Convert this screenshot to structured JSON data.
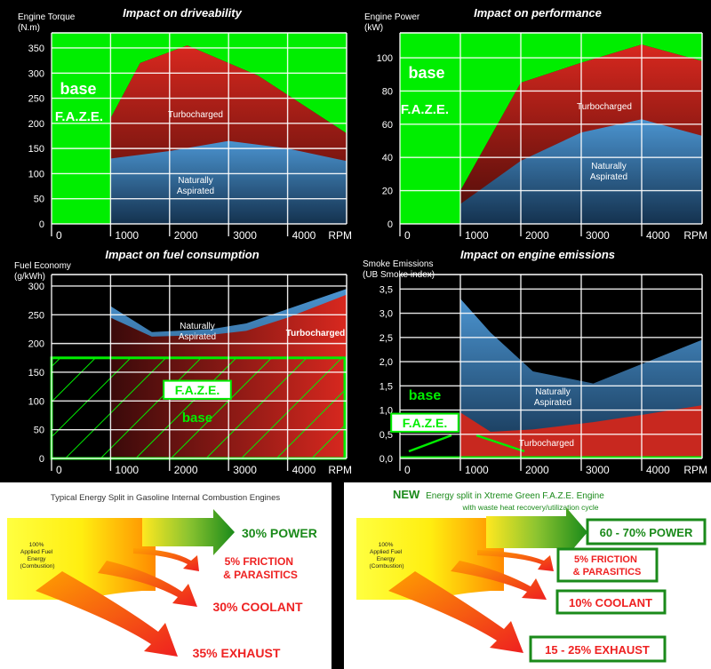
{
  "chart_data": [
    {
      "type": "area",
      "title": "Impact on driveability",
      "ylabel": "Engine Torque (N.m)",
      "xlabel": "RPM",
      "x_ticks": [
        "0",
        "1000",
        "2000",
        "3000",
        "4000"
      ],
      "y_ticks": [
        "0",
        "50",
        "100",
        "150",
        "200",
        "250",
        "300",
        "350"
      ],
      "ylim": [
        0,
        380
      ],
      "xlim": [
        0,
        5000
      ],
      "grid": true,
      "base_label": "base",
      "faze_label": "F.A.Z.E.",
      "series": [
        {
          "name": "Turbocharged",
          "x": [
            1000,
            1500,
            2300,
            3500,
            5000
          ],
          "y": [
            210,
            320,
            355,
            295,
            180
          ]
        },
        {
          "name": "Naturally Aspirated",
          "x": [
            1000,
            2000,
            3000,
            4000,
            5000
          ],
          "y": [
            130,
            145,
            165,
            150,
            125
          ]
        }
      ]
    },
    {
      "type": "area",
      "title": "Impact on performance",
      "ylabel": "Engine Power (kW)",
      "xlabel": "RPM",
      "x_ticks": [
        "0",
        "1000",
        "2000",
        "3000",
        "4000"
      ],
      "y_ticks": [
        "0",
        "20",
        "40",
        "60",
        "80",
        "100"
      ],
      "ylim": [
        0,
        115
      ],
      "xlim": [
        0,
        5000
      ],
      "grid": true,
      "base_label": "base",
      "faze_label": "F.A.Z.E.",
      "series": [
        {
          "name": "Turbocharged",
          "x": [
            1000,
            2000,
            3000,
            4000,
            5000
          ],
          "y": [
            20,
            85,
            97,
            108,
            98
          ]
        },
        {
          "name": "Naturally Aspirated",
          "x": [
            1000,
            2000,
            3000,
            4000,
            5000
          ],
          "y": [
            12,
            38,
            55,
            63,
            53
          ]
        }
      ]
    },
    {
      "type": "area",
      "title": "Impact on fuel consumption",
      "ylabel": "Fuel Economy (g/kWh)",
      "xlabel": "RPM",
      "x_ticks": [
        "0",
        "1000",
        "2000",
        "3000",
        "4000"
      ],
      "y_ticks": [
        "0",
        "50",
        "100",
        "150",
        "200",
        "250",
        "300"
      ],
      "ylim": [
        0,
        320
      ],
      "xlim": [
        0,
        5000
      ],
      "grid": true,
      "base_label": "base",
      "faze_label": "F.A.Z.E.",
      "faze_level": 175,
      "series": [
        {
          "name": "Naturally Aspirated",
          "x": [
            1000,
            1700,
            2700,
            3300,
            4000,
            5000
          ],
          "y": [
            265,
            220,
            225,
            235,
            260,
            295
          ]
        },
        {
          "name": "Turbocharged",
          "x": [
            1000,
            1700,
            2700,
            3300,
            4000,
            5000
          ],
          "y": [
            245,
            212,
            215,
            222,
            245,
            285
          ]
        }
      ]
    },
    {
      "type": "area",
      "title": "Impact on engine emissions",
      "ylabel": "Smoke Emissions (UB Smoke index)",
      "xlabel": "RPM",
      "x_ticks": [
        "0",
        "1000",
        "2000",
        "3000",
        "4000"
      ],
      "y_ticks": [
        "0,0",
        "0,5",
        "1,0",
        "1,5",
        "2,0",
        "2,5",
        "3,0",
        "3,5"
      ],
      "ylim": [
        0,
        3.8
      ],
      "xlim": [
        0,
        5000
      ],
      "grid": true,
      "base_label": "base",
      "faze_label": "F.A.Z.E.",
      "series": [
        {
          "name": "Naturally Aspirated",
          "x": [
            1000,
            1500,
            2200,
            3200,
            4000,
            5000
          ],
          "y": [
            3.3,
            2.6,
            1.8,
            1.55,
            1.95,
            2.45
          ]
        },
        {
          "name": "Turbocharged",
          "x": [
            1000,
            1500,
            2200,
            3200,
            4000,
            5000
          ],
          "y": [
            0.95,
            0.55,
            0.6,
            0.75,
            0.9,
            1.1
          ]
        }
      ]
    }
  ],
  "energy_split": {
    "left": {
      "title": "Typical Energy Split in Gasoline Internal Combustion Engines",
      "source_label": "100%\nApplied Fuel\nEnergy\n(Combustion)",
      "power": "30% POWER",
      "friction": "5% FRICTION\n& PARASITICS",
      "coolant": "30% COOLANT",
      "exhaust": "35% EXHAUST"
    },
    "right": {
      "title_new": "NEW",
      "title_rest": "Energy split in Xtreme Green F.A.Z.E. Engine",
      "subtitle": "with waste heat recovery/utilization cycle",
      "source_label": "100%\nApplied Fuel\nEnergy\n(Combustion)",
      "power": "60 - 70% POWER",
      "friction": "5% FRICTION\n& PARASITICS",
      "coolant": "10% COOLANT",
      "exhaust": "15 - 25% EXHAUST"
    }
  },
  "colors": {
    "faze_green": "#00ee00",
    "turbo_red": "#cc2222",
    "na_blue": "#3a7fb8",
    "power_green": "#1a8a1a",
    "loss_red": "#ee2222"
  }
}
